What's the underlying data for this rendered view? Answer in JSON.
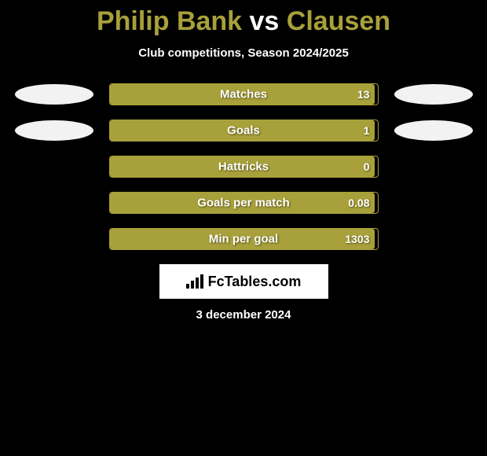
{
  "title": {
    "text_parts": [
      "Philip Bank",
      " vs ",
      "Clausen"
    ],
    "colors": [
      "#a8a03a",
      "#ffffff",
      "#a8a03a"
    ]
  },
  "subtitle": "Club competitions, Season 2024/2025",
  "stats": [
    {
      "label": "Matches",
      "value": "13",
      "left_ellipse": {
        "show": true,
        "color": "#f2f2f2"
      },
      "right_ellipse": {
        "show": true,
        "color": "#f2f2f2"
      },
      "bar": {
        "fill_pct": 99,
        "fill_color": "#a8a03a",
        "border_color": "#a8a03a",
        "bg_color": "#000000"
      }
    },
    {
      "label": "Goals",
      "value": "1",
      "left_ellipse": {
        "show": true,
        "color": "#f2f2f2"
      },
      "right_ellipse": {
        "show": true,
        "color": "#f2f2f2"
      },
      "bar": {
        "fill_pct": 99,
        "fill_color": "#a8a03a",
        "border_color": "#a8a03a",
        "bg_color": "#000000"
      }
    },
    {
      "label": "Hattricks",
      "value": "0",
      "left_ellipse": {
        "show": false
      },
      "right_ellipse": {
        "show": false
      },
      "bar": {
        "fill_pct": 99,
        "fill_color": "#a8a03a",
        "border_color": "#a8a03a",
        "bg_color": "#000000"
      }
    },
    {
      "label": "Goals per match",
      "value": "0.08",
      "left_ellipse": {
        "show": false
      },
      "right_ellipse": {
        "show": false
      },
      "bar": {
        "fill_pct": 99,
        "fill_color": "#a8a03a",
        "border_color": "#a8a03a",
        "bg_color": "#000000"
      }
    },
    {
      "label": "Min per goal",
      "value": "1303",
      "left_ellipse": {
        "show": false
      },
      "right_ellipse": {
        "show": false
      },
      "bar": {
        "fill_pct": 99,
        "fill_color": "#a8a03a",
        "border_color": "#a8a03a",
        "bg_color": "#000000"
      }
    }
  ],
  "logo_text": "FcTables.com",
  "date_text": "3 december 2024",
  "colors": {
    "background": "#000000",
    "accent": "#a8a03a",
    "text": "#ffffff"
  }
}
